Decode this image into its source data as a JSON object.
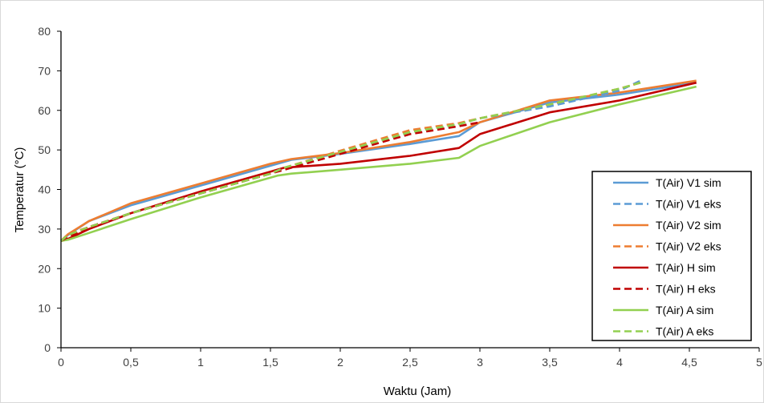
{
  "chart_data": {
    "type": "line",
    "title": "",
    "xlabel": "Waktu (Jam)",
    "ylabel": "Temperatur (°C)",
    "xlim": [
      0,
      5
    ],
    "ylim": [
      0,
      80
    ],
    "x_ticks": [
      0,
      0.5,
      1,
      1.5,
      2,
      2.5,
      3,
      3.5,
      4,
      4.5,
      5
    ],
    "x_tick_labels": [
      "0",
      "0,5",
      "1",
      "1,5",
      "2",
      "2,5",
      "3",
      "3,5",
      "4",
      "4,5",
      "5"
    ],
    "y_ticks": [
      0,
      10,
      20,
      30,
      40,
      50,
      60,
      70,
      80
    ],
    "y_tick_labels": [
      "0",
      "10",
      "20",
      "30",
      "40",
      "50",
      "60",
      "70",
      "80"
    ],
    "grid": false,
    "legend_position": "right",
    "series": [
      {
        "name": "T(Air) V1 sim",
        "color": "#5b9bd5",
        "dash": "solid",
        "x": [
          0,
          0.05,
          0.2,
          0.5,
          1.0,
          1.5,
          1.65,
          2.0,
          2.5,
          2.85,
          3.0,
          3.5,
          4.0,
          4.55
        ],
        "y": [
          27,
          28.5,
          32,
          36,
          41,
          46,
          47.5,
          49,
          51.5,
          53.5,
          57,
          62,
          64,
          67
        ]
      },
      {
        "name": "T(Air) V1 eks",
        "color": "#5b9bd5",
        "dash": "dashed",
        "x": [
          0,
          0.05,
          0.2,
          0.5,
          1.0,
          1.5,
          1.6,
          2.0,
          2.5,
          2.85,
          3.0,
          3.5,
          4.0,
          4.15
        ],
        "y": [
          27,
          28.5,
          30.5,
          34,
          39,
          44,
          45.5,
          49.5,
          54.5,
          56.5,
          58,
          61,
          65,
          67.5
        ]
      },
      {
        "name": "T(Air) V2 sim",
        "color": "#ed7d31",
        "dash": "solid",
        "x": [
          0,
          0.05,
          0.2,
          0.5,
          1.0,
          1.5,
          1.65,
          2.0,
          2.5,
          2.85,
          3.0,
          3.5,
          4.0,
          4.55
        ],
        "y": [
          27,
          28.7,
          32,
          36.5,
          41.5,
          46.5,
          47.7,
          49.2,
          52,
          54.5,
          57,
          62.5,
          64.5,
          67.5
        ]
      },
      {
        "name": "T(Air) V2 eks",
        "color": "#ed7d31",
        "dash": "dashed",
        "x": [
          0,
          0.05,
          0.2,
          0.5,
          1.0,
          1.5,
          1.6,
          2.0,
          2.5,
          2.85,
          3.0,
          3.5,
          4.0,
          4.15
        ],
        "y": [
          27,
          28.7,
          30.5,
          34,
          39,
          44,
          45.5,
          49.8,
          55,
          56.8,
          58,
          61.5,
          65.5,
          67
        ]
      },
      {
        "name": "T(Air) H sim",
        "color": "#c00000",
        "dash": "solid",
        "x": [
          0,
          0.05,
          0.2,
          0.5,
          1.0,
          1.5,
          1.6,
          2.0,
          2.5,
          2.85,
          3.0,
          3.5,
          4.0,
          4.55
        ],
        "y": [
          27,
          27.5,
          30,
          34,
          39.5,
          44.5,
          45.5,
          46.5,
          48.5,
          50.5,
          54,
          59.5,
          62.5,
          67
        ]
      },
      {
        "name": "T(Air) H eks",
        "color": "#c00000",
        "dash": "dashed",
        "x": [
          0,
          0.05,
          0.2,
          0.5,
          1.0,
          1.5,
          1.6,
          2.0,
          2.5,
          2.85,
          3.0
        ],
        "y": [
          27,
          28,
          30.5,
          34,
          39,
          44,
          45,
          49,
          54,
          56,
          57
        ]
      },
      {
        "name": "T(Air) A sim",
        "color": "#92d050",
        "dash": "solid",
        "x": [
          0,
          0.05,
          0.2,
          0.5,
          1.0,
          1.55,
          1.65,
          2.0,
          2.5,
          2.85,
          3.0,
          3.5,
          4.0,
          4.55
        ],
        "y": [
          27,
          27.3,
          29,
          32.5,
          38,
          43.5,
          44,
          45,
          46.5,
          48,
          51,
          57,
          61.5,
          66
        ]
      },
      {
        "name": "T(Air) A eks",
        "color": "#92d050",
        "dash": "dashed",
        "x": [
          0,
          0.05,
          0.2,
          0.5,
          1.0,
          1.5,
          1.6,
          2.0,
          2.5,
          2.85,
          3.0,
          3.5,
          4.0,
          4.15
        ],
        "y": [
          27,
          28.5,
          30.5,
          34,
          39,
          44,
          45.5,
          49.5,
          54.5,
          56.5,
          58,
          61.5,
          65.5,
          67
        ]
      }
    ]
  }
}
